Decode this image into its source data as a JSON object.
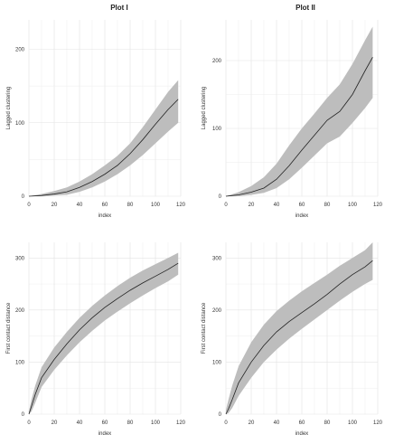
{
  "figure": {
    "col_titles": [
      "Plot I",
      "Plot II"
    ],
    "colors": {
      "band": "#bdbdbd",
      "line": "#222222",
      "grid": "#e3e3e3",
      "axis_text": "#333333"
    }
  },
  "chart_data": [
    {
      "type": "area",
      "title": "Plot I",
      "xlabel": "index",
      "ylabel": "Lagged clustering",
      "xlim": [
        0,
        120
      ],
      "ylim": [
        0,
        240
      ],
      "xticks": [
        0,
        20,
        40,
        60,
        80,
        100,
        120
      ],
      "yticks": [
        0,
        100,
        200
      ],
      "grid": true,
      "legend": "none",
      "series": [
        {
          "x": [
            0,
            10,
            20,
            30,
            40,
            50,
            60,
            70,
            80,
            90,
            100,
            110,
            118
          ],
          "y": [
            0,
            1,
            3,
            6,
            12,
            20,
            30,
            42,
            58,
            77,
            98,
            118,
            132
          ],
          "lower": [
            0,
            0,
            1,
            2,
            6,
            12,
            20,
            30,
            42,
            56,
            72,
            88,
            100
          ],
          "upper": [
            0,
            3,
            7,
            12,
            20,
            30,
            42,
            55,
            72,
            94,
            118,
            142,
            158
          ]
        }
      ]
    },
    {
      "type": "area",
      "title": "Plot II",
      "xlabel": "index",
      "ylabel": "Lagged clustering",
      "xlim": [
        0,
        120
      ],
      "ylim": [
        0,
        260
      ],
      "xticks": [
        0,
        20,
        40,
        60,
        80,
        100,
        120
      ],
      "yticks": [
        0,
        100,
        200
      ],
      "grid": true,
      "legend": "none",
      "series": [
        {
          "x": [
            0,
            10,
            20,
            30,
            40,
            50,
            60,
            70,
            80,
            90,
            100,
            110,
            116
          ],
          "y": [
            0,
            2,
            6,
            12,
            25,
            45,
            68,
            90,
            112,
            125,
            150,
            185,
            205
          ],
          "lower": [
            0,
            0,
            2,
            5,
            12,
            25,
            42,
            60,
            78,
            88,
            108,
            130,
            145
          ],
          "upper": [
            0,
            6,
            15,
            28,
            48,
            75,
            100,
            122,
            145,
            165,
            195,
            230,
            250
          ]
        }
      ]
    },
    {
      "type": "area",
      "xlabel": "index",
      "ylabel": "First contact distance",
      "xlim": [
        0,
        120
      ],
      "ylim": [
        0,
        330
      ],
      "xticks": [
        0,
        20,
        40,
        60,
        80,
        100,
        120
      ],
      "yticks": [
        0,
        100,
        200,
        300
      ],
      "grid": true,
      "legend": "none",
      "series": [
        {
          "x": [
            0,
            2,
            5,
            10,
            20,
            30,
            40,
            50,
            60,
            70,
            80,
            90,
            100,
            110,
            118
          ],
          "y": [
            0,
            15,
            38,
            70,
            105,
            135,
            162,
            185,
            205,
            222,
            238,
            252,
            265,
            278,
            290
          ],
          "lower": [
            0,
            5,
            22,
            52,
            85,
            113,
            138,
            160,
            180,
            197,
            213,
            228,
            242,
            255,
            268
          ],
          "upper": [
            5,
            28,
            55,
            90,
            128,
            158,
            185,
            208,
            228,
            246,
            262,
            276,
            288,
            300,
            310
          ]
        }
      ]
    },
    {
      "type": "area",
      "xlabel": "index",
      "ylabel": "First contact distance",
      "xlim": [
        0,
        120
      ],
      "ylim": [
        0,
        330
      ],
      "xticks": [
        0,
        20,
        40,
        60,
        80,
        100,
        120
      ],
      "yticks": [
        0,
        100,
        200,
        300
      ],
      "grid": true,
      "legend": "none",
      "series": [
        {
          "x": [
            0,
            2,
            5,
            10,
            20,
            30,
            40,
            50,
            60,
            70,
            80,
            90,
            100,
            110,
            116
          ],
          "y": [
            0,
            10,
            28,
            60,
            100,
            132,
            158,
            178,
            195,
            212,
            230,
            250,
            268,
            283,
            295
          ],
          "lower": [
            0,
            2,
            12,
            35,
            70,
            100,
            124,
            145,
            164,
            182,
            200,
            218,
            235,
            250,
            258
          ],
          "upper": [
            8,
            28,
            55,
            92,
            138,
            172,
            198,
            218,
            236,
            252,
            268,
            285,
            300,
            315,
            330
          ]
        }
      ]
    }
  ]
}
